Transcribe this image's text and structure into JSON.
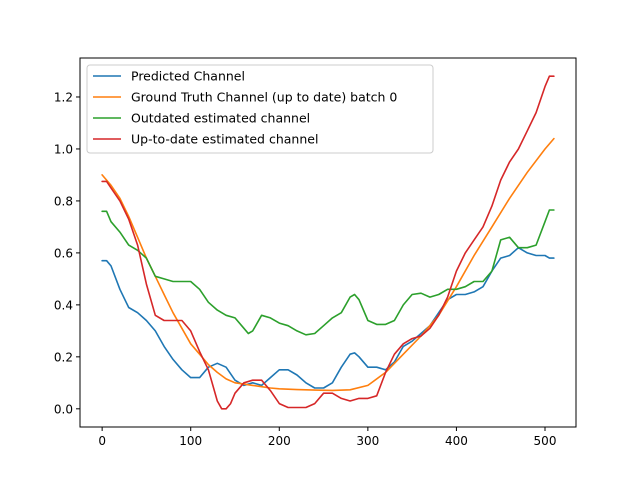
{
  "chart_data": {
    "type": "line",
    "title": "",
    "xlabel": "",
    "ylabel": "",
    "xlim": [
      -25,
      535
    ],
    "ylim": [
      -0.07,
      1.35
    ],
    "xticks": [
      0,
      100,
      200,
      300,
      400,
      500
    ],
    "xtick_labels": [
      "0",
      "100",
      "200",
      "300",
      "400",
      "500"
    ],
    "yticks": [
      0.0,
      0.2,
      0.4,
      0.6,
      0.8,
      1.0,
      1.2
    ],
    "ytick_labels": [
      "0.0",
      "0.2",
      "0.4",
      "0.6",
      "0.8",
      "1.0",
      "1.2"
    ],
    "grid": false,
    "legend_position": "upper-left",
    "series": [
      {
        "name": "Predicted Channel",
        "color": "#1f77b4",
        "x": [
          0,
          5,
          10,
          20,
          30,
          40,
          50,
          60,
          70,
          80,
          90,
          100,
          110,
          120,
          130,
          140,
          150,
          160,
          170,
          180,
          190,
          200,
          210,
          220,
          230,
          240,
          250,
          260,
          270,
          280,
          285,
          290,
          300,
          310,
          320,
          330,
          340,
          350,
          360,
          370,
          380,
          390,
          400,
          410,
          420,
          430,
          440,
          450,
          460,
          470,
          480,
          490,
          500,
          505,
          510
        ],
        "y": [
          0.57,
          0.57,
          0.55,
          0.46,
          0.39,
          0.37,
          0.34,
          0.3,
          0.24,
          0.19,
          0.15,
          0.12,
          0.12,
          0.16,
          0.175,
          0.16,
          0.11,
          0.09,
          0.1,
          0.09,
          0.12,
          0.15,
          0.15,
          0.13,
          0.1,
          0.08,
          0.08,
          0.1,
          0.16,
          0.21,
          0.215,
          0.2,
          0.16,
          0.16,
          0.15,
          0.18,
          0.24,
          0.26,
          0.29,
          0.32,
          0.37,
          0.42,
          0.44,
          0.44,
          0.45,
          0.47,
          0.53,
          0.58,
          0.59,
          0.62,
          0.6,
          0.59,
          0.59,
          0.58,
          0.58
        ]
      },
      {
        "name": "Ground Truth Channel (up to date) batch 0",
        "color": "#ff7f0e",
        "x": [
          0,
          10,
          20,
          30,
          40,
          50,
          60,
          70,
          80,
          90,
          100,
          110,
          120,
          130,
          140,
          150,
          160,
          170,
          180,
          190,
          200,
          220,
          240,
          260,
          280,
          300,
          320,
          340,
          360,
          380,
          400,
          420,
          440,
          460,
          480,
          500,
          510
        ],
        "y": [
          0.9,
          0.86,
          0.81,
          0.74,
          0.66,
          0.58,
          0.51,
          0.44,
          0.37,
          0.31,
          0.25,
          0.21,
          0.17,
          0.14,
          0.115,
          0.1,
          0.095,
          0.09,
          0.085,
          0.08,
          0.077,
          0.074,
          0.072,
          0.071,
          0.073,
          0.09,
          0.14,
          0.21,
          0.28,
          0.36,
          0.47,
          0.59,
          0.7,
          0.81,
          0.91,
          1.0,
          1.04
        ]
      },
      {
        "name": "Outdated estimated channel",
        "color": "#2ca02c",
        "x": [
          0,
          5,
          10,
          20,
          30,
          40,
          50,
          60,
          70,
          80,
          90,
          100,
          110,
          120,
          130,
          140,
          150,
          160,
          165,
          170,
          180,
          190,
          200,
          210,
          220,
          230,
          240,
          250,
          260,
          270,
          280,
          285,
          290,
          300,
          310,
          320,
          330,
          340,
          350,
          360,
          370,
          380,
          390,
          400,
          410,
          420,
          430,
          440,
          450,
          460,
          470,
          480,
          490,
          500,
          505,
          510
        ],
        "y": [
          0.76,
          0.76,
          0.72,
          0.68,
          0.63,
          0.61,
          0.58,
          0.51,
          0.5,
          0.49,
          0.49,
          0.49,
          0.46,
          0.41,
          0.38,
          0.36,
          0.35,
          0.31,
          0.29,
          0.3,
          0.36,
          0.35,
          0.33,
          0.32,
          0.3,
          0.285,
          0.29,
          0.32,
          0.35,
          0.37,
          0.43,
          0.44,
          0.42,
          0.34,
          0.325,
          0.325,
          0.34,
          0.4,
          0.44,
          0.445,
          0.43,
          0.44,
          0.46,
          0.46,
          0.47,
          0.49,
          0.49,
          0.53,
          0.65,
          0.66,
          0.62,
          0.62,
          0.63,
          0.72,
          0.765,
          0.765
        ]
      },
      {
        "name": "Up-to-date estimated channel",
        "color": "#d62728",
        "x": [
          0,
          5,
          10,
          20,
          30,
          40,
          50,
          60,
          70,
          80,
          90,
          100,
          110,
          120,
          130,
          135,
          140,
          145,
          150,
          160,
          170,
          180,
          190,
          200,
          210,
          220,
          230,
          240,
          250,
          260,
          270,
          280,
          290,
          300,
          310,
          320,
          330,
          340,
          350,
          360,
          370,
          380,
          390,
          400,
          410,
          420,
          430,
          440,
          450,
          460,
          470,
          480,
          490,
          500,
          505,
          510
        ],
        "y": [
          0.875,
          0.875,
          0.85,
          0.8,
          0.73,
          0.63,
          0.48,
          0.36,
          0.34,
          0.34,
          0.34,
          0.3,
          0.22,
          0.15,
          0.03,
          0.0,
          0.0,
          0.02,
          0.06,
          0.1,
          0.11,
          0.11,
          0.07,
          0.02,
          0.005,
          0.005,
          0.005,
          0.02,
          0.06,
          0.06,
          0.04,
          0.03,
          0.04,
          0.04,
          0.05,
          0.14,
          0.21,
          0.25,
          0.27,
          0.28,
          0.31,
          0.36,
          0.43,
          0.53,
          0.6,
          0.65,
          0.7,
          0.78,
          0.88,
          0.95,
          1.0,
          1.07,
          1.14,
          1.24,
          1.28,
          1.28
        ]
      }
    ]
  }
}
